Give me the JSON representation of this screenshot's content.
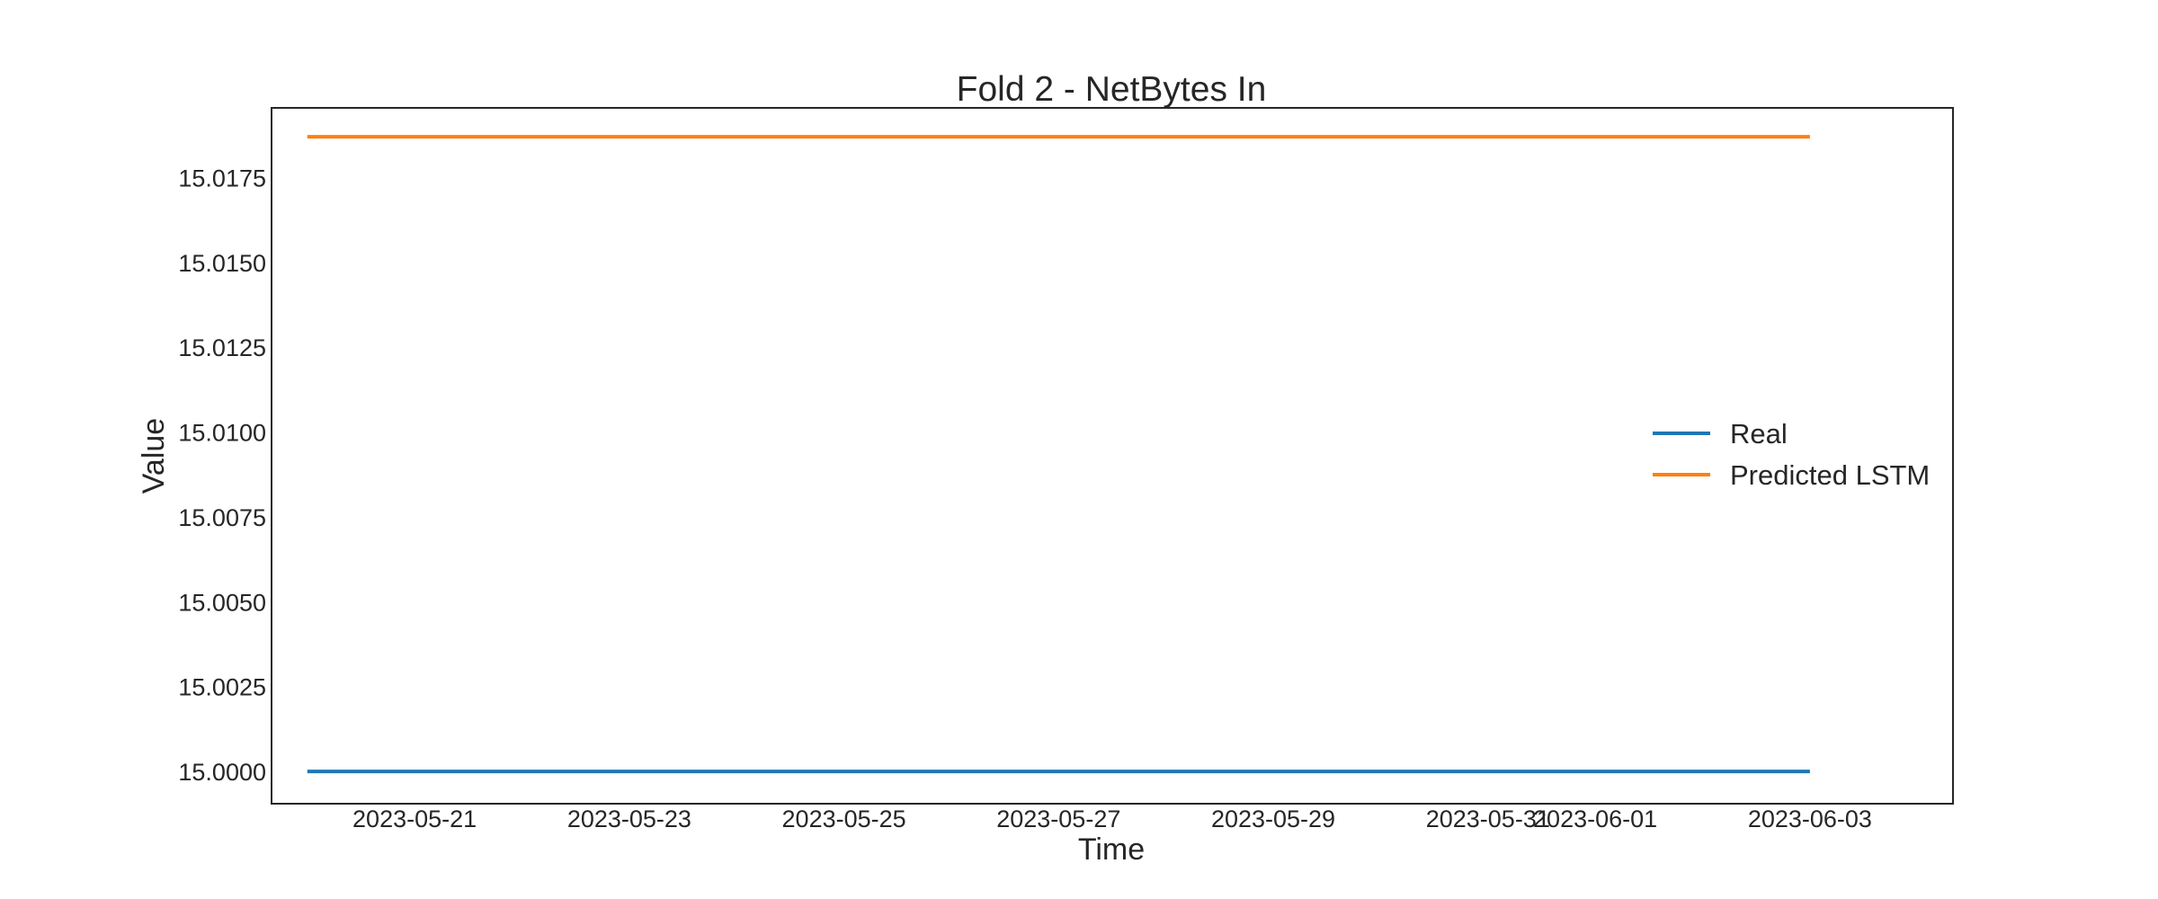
{
  "chart_data": {
    "type": "line",
    "title": "Fold 2 - NetBytes In",
    "xlabel": "Time",
    "ylabel": "Value",
    "x_range": [
      "2023-05-20",
      "2023-06-03"
    ],
    "xlim": [
      "2023-05-19T16:00",
      "2023-06-04T08:00"
    ],
    "ylim": [
      14.99905,
      15.01955
    ],
    "grid": false,
    "legend_position": "center-right",
    "x_ticks": [
      "2023-05-21",
      "2023-05-23",
      "2023-05-25",
      "2023-05-27",
      "2023-05-29",
      "2023-05-31",
      "2023-06-01",
      "2023-06-03"
    ],
    "y_ticks": [
      "15.0000",
      "15.0025",
      "15.0050",
      "15.0075",
      "15.0100",
      "15.0125",
      "15.0150",
      "15.0175"
    ],
    "y_tick_values": [
      15.0,
      15.0025,
      15.005,
      15.0075,
      15.01,
      15.0125,
      15.015,
      15.0175
    ],
    "series": [
      {
        "name": "Real",
        "color": "#1f77b4",
        "x": [
          "2023-05-20",
          "2023-06-03"
        ],
        "values": [
          15.0,
          15.0
        ]
      },
      {
        "name": "Predicted LSTM",
        "color": "#ff7f0e",
        "x": [
          "2023-05-20",
          "2023-06-03"
        ],
        "values": [
          15.0187,
          15.0187
        ]
      }
    ]
  }
}
